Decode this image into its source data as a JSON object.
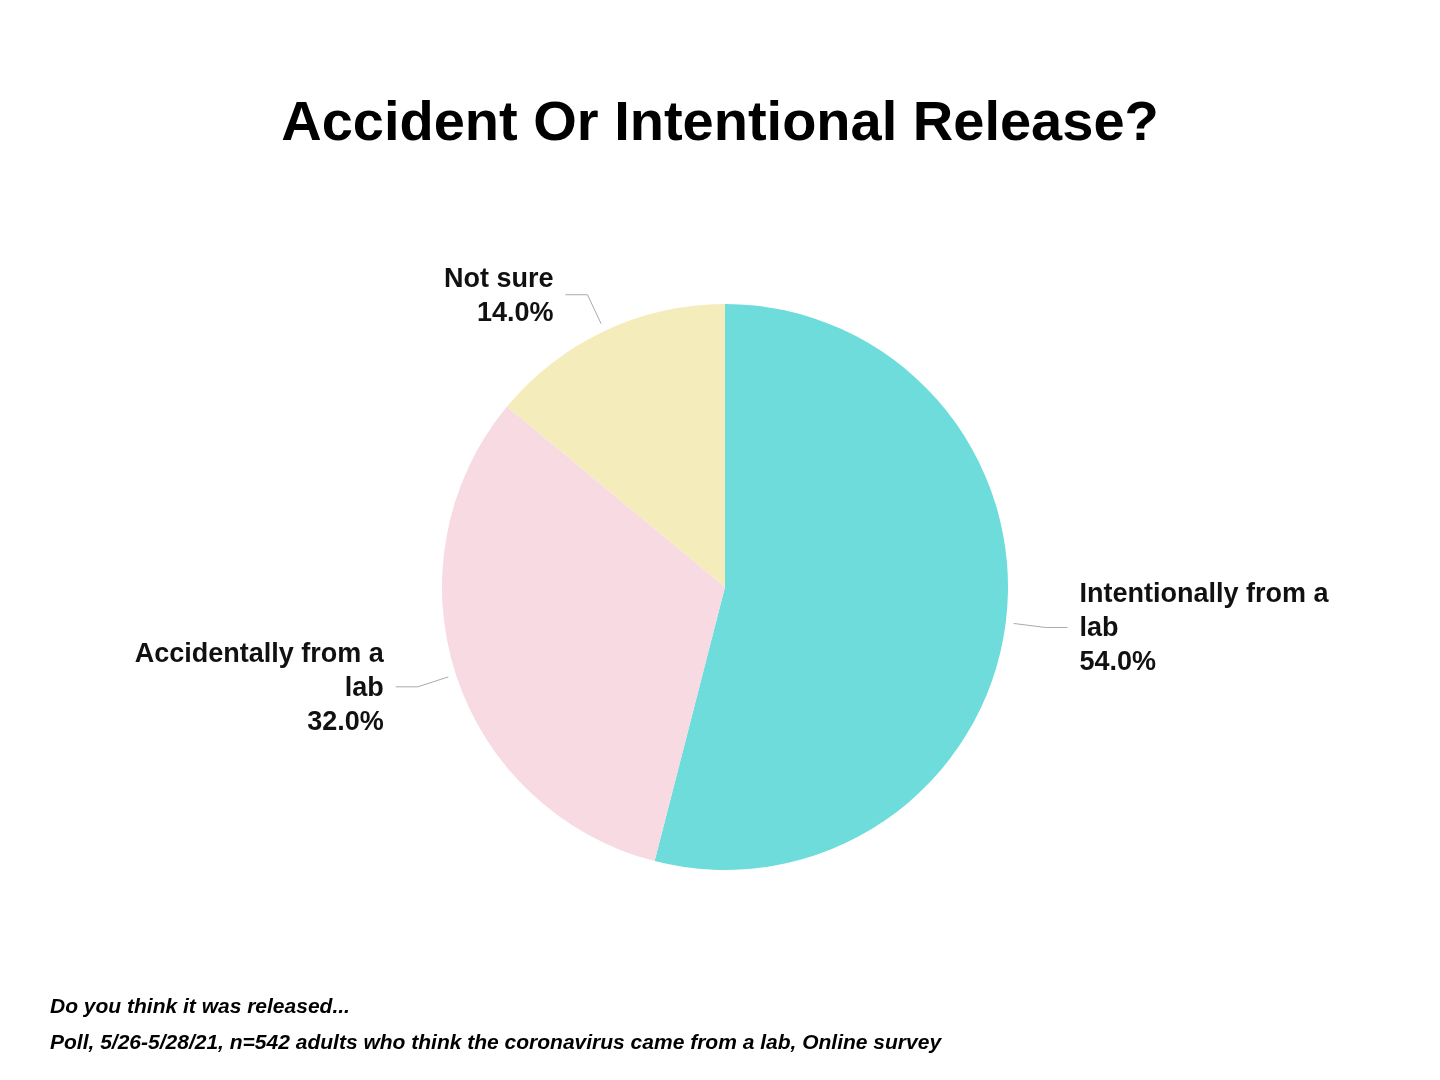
{
  "chart_data": {
    "type": "pie",
    "title": "Accident Or Intentional Release?",
    "categories": [
      "Intentionally from a lab",
      "Accidentally from a lab",
      "Not sure"
    ],
    "values": [
      54,
      32,
      14
    ],
    "value_labels": [
      "54.0%",
      "32.0%",
      "14.0%"
    ],
    "colors": [
      "#6edcdb",
      "#f7dae2",
      "#f5ecbb"
    ],
    "legend": false,
    "annotations": [
      "Do you think it was released...",
      "Poll, 5/26-5/28/21, n=542 adults who think the coronavirus came from a lab, Online survey"
    ]
  }
}
